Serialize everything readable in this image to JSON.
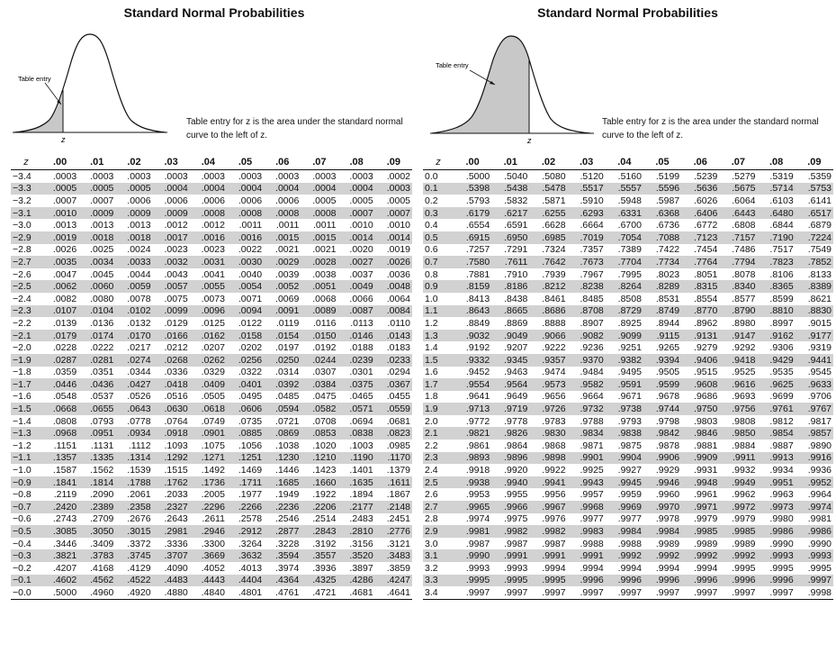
{
  "left": {
    "title": "Standard Normal Probabilities",
    "annotation": "Table entry",
    "zlabel": "z",
    "description": "Table entry for z is the area under the standard normal curve to the left of z.",
    "headers": [
      "z",
      ".00",
      ".01",
      ".02",
      ".03",
      ".04",
      ".05",
      ".06",
      ".07",
      ".08",
      ".09"
    ],
    "rows": [
      [
        "−3.4",
        ".0003",
        ".0003",
        ".0003",
        ".0003",
        ".0003",
        ".0003",
        ".0003",
        ".0003",
        ".0003",
        ".0002"
      ],
      [
        "−3.3",
        ".0005",
        ".0005",
        ".0005",
        ".0004",
        ".0004",
        ".0004",
        ".0004",
        ".0004",
        ".0004",
        ".0003"
      ],
      [
        "−3.2",
        ".0007",
        ".0007",
        ".0006",
        ".0006",
        ".0006",
        ".0006",
        ".0006",
        ".0005",
        ".0005",
        ".0005"
      ],
      [
        "−3.1",
        ".0010",
        ".0009",
        ".0009",
        ".0009",
        ".0008",
        ".0008",
        ".0008",
        ".0008",
        ".0007",
        ".0007"
      ],
      [
        "−3.0",
        ".0013",
        ".0013",
        ".0013",
        ".0012",
        ".0012",
        ".0011",
        ".0011",
        ".0011",
        ".0010",
        ".0010"
      ],
      [
        "−2.9",
        ".0019",
        ".0018",
        ".0018",
        ".0017",
        ".0016",
        ".0016",
        ".0015",
        ".0015",
        ".0014",
        ".0014"
      ],
      [
        "−2.8",
        ".0026",
        ".0025",
        ".0024",
        ".0023",
        ".0023",
        ".0022",
        ".0021",
        ".0021",
        ".0020",
        ".0019"
      ],
      [
        "−2.7",
        ".0035",
        ".0034",
        ".0033",
        ".0032",
        ".0031",
        ".0030",
        ".0029",
        ".0028",
        ".0027",
        ".0026"
      ],
      [
        "−2.6",
        ".0047",
        ".0045",
        ".0044",
        ".0043",
        ".0041",
        ".0040",
        ".0039",
        ".0038",
        ".0037",
        ".0036"
      ],
      [
        "−2.5",
        ".0062",
        ".0060",
        ".0059",
        ".0057",
        ".0055",
        ".0054",
        ".0052",
        ".0051",
        ".0049",
        ".0048"
      ],
      [
        "−2.4",
        ".0082",
        ".0080",
        ".0078",
        ".0075",
        ".0073",
        ".0071",
        ".0069",
        ".0068",
        ".0066",
        ".0064"
      ],
      [
        "−2.3",
        ".0107",
        ".0104",
        ".0102",
        ".0099",
        ".0096",
        ".0094",
        ".0091",
        ".0089",
        ".0087",
        ".0084"
      ],
      [
        "−2.2",
        ".0139",
        ".0136",
        ".0132",
        ".0129",
        ".0125",
        ".0122",
        ".0119",
        ".0116",
        ".0113",
        ".0110"
      ],
      [
        "−2.1",
        ".0179",
        ".0174",
        ".0170",
        ".0166",
        ".0162",
        ".0158",
        ".0154",
        ".0150",
        ".0146",
        ".0143"
      ],
      [
        "−2.0",
        ".0228",
        ".0222",
        ".0217",
        ".0212",
        ".0207",
        ".0202",
        ".0197",
        ".0192",
        ".0188",
        ".0183"
      ],
      [
        "−1.9",
        ".0287",
        ".0281",
        ".0274",
        ".0268",
        ".0262",
        ".0256",
        ".0250",
        ".0244",
        ".0239",
        ".0233"
      ],
      [
        "−1.8",
        ".0359",
        ".0351",
        ".0344",
        ".0336",
        ".0329",
        ".0322",
        ".0314",
        ".0307",
        ".0301",
        ".0294"
      ],
      [
        "−1.7",
        ".0446",
        ".0436",
        ".0427",
        ".0418",
        ".0409",
        ".0401",
        ".0392",
        ".0384",
        ".0375",
        ".0367"
      ],
      [
        "−1.6",
        ".0548",
        ".0537",
        ".0526",
        ".0516",
        ".0505",
        ".0495",
        ".0485",
        ".0475",
        ".0465",
        ".0455"
      ],
      [
        "−1.5",
        ".0668",
        ".0655",
        ".0643",
        ".0630",
        ".0618",
        ".0606",
        ".0594",
        ".0582",
        ".0571",
        ".0559"
      ],
      [
        "−1.4",
        ".0808",
        ".0793",
        ".0778",
        ".0764",
        ".0749",
        ".0735",
        ".0721",
        ".0708",
        ".0694",
        ".0681"
      ],
      [
        "−1.3",
        ".0968",
        ".0951",
        ".0934",
        ".0918",
        ".0901",
        ".0885",
        ".0869",
        ".0853",
        ".0838",
        ".0823"
      ],
      [
        "−1.2",
        ".1151",
        ".1131",
        ".1112",
        ".1093",
        ".1075",
        ".1056",
        ".1038",
        ".1020",
        ".1003",
        ".0985"
      ],
      [
        "−1.1",
        ".1357",
        ".1335",
        ".1314",
        ".1292",
        ".1271",
        ".1251",
        ".1230",
        ".1210",
        ".1190",
        ".1170"
      ],
      [
        "−1.0",
        ".1587",
        ".1562",
        ".1539",
        ".1515",
        ".1492",
        ".1469",
        ".1446",
        ".1423",
        ".1401",
        ".1379"
      ],
      [
        "−0.9",
        ".1841",
        ".1814",
        ".1788",
        ".1762",
        ".1736",
        ".1711",
        ".1685",
        ".1660",
        ".1635",
        ".1611"
      ],
      [
        "−0.8",
        ".2119",
        ".2090",
        ".2061",
        ".2033",
        ".2005",
        ".1977",
        ".1949",
        ".1922",
        ".1894",
        ".1867"
      ],
      [
        "−0.7",
        ".2420",
        ".2389",
        ".2358",
        ".2327",
        ".2296",
        ".2266",
        ".2236",
        ".2206",
        ".2177",
        ".2148"
      ],
      [
        "−0.6",
        ".2743",
        ".2709",
        ".2676",
        ".2643",
        ".2611",
        ".2578",
        ".2546",
        ".2514",
        ".2483",
        ".2451"
      ],
      [
        "−0.5",
        ".3085",
        ".3050",
        ".3015",
        ".2981",
        ".2946",
        ".2912",
        ".2877",
        ".2843",
        ".2810",
        ".2776"
      ],
      [
        "−0.4",
        ".3446",
        ".3409",
        ".3372",
        ".3336",
        ".3300",
        ".3264",
        ".3228",
        ".3192",
        ".3156",
        ".3121"
      ],
      [
        "−0.3",
        ".3821",
        ".3783",
        ".3745",
        ".3707",
        ".3669",
        ".3632",
        ".3594",
        ".3557",
        ".3520",
        ".3483"
      ],
      [
        "−0.2",
        ".4207",
        ".4168",
        ".4129",
        ".4090",
        ".4052",
        ".4013",
        ".3974",
        ".3936",
        ".3897",
        ".3859"
      ],
      [
        "−0.1",
        ".4602",
        ".4562",
        ".4522",
        ".4483",
        ".4443",
        ".4404",
        ".4364",
        ".4325",
        ".4286",
        ".4247"
      ],
      [
        "−0.0",
        ".5000",
        ".4960",
        ".4920",
        ".4880",
        ".4840",
        ".4801",
        ".4761",
        ".4721",
        ".4681",
        ".4641"
      ]
    ]
  },
  "right": {
    "title": "Standard Normal Probabilities",
    "annotation": "Table entry",
    "zlabel": "z",
    "description": "Table entry for z is the area under the standard normal curve to the left of z.",
    "headers": [
      "z",
      ".00",
      ".01",
      ".02",
      ".03",
      ".04",
      ".05",
      ".06",
      ".07",
      ".08",
      ".09"
    ],
    "rows": [
      [
        "0.0",
        ".5000",
        ".5040",
        ".5080",
        ".5120",
        ".5160",
        ".5199",
        ".5239",
        ".5279",
        ".5319",
        ".5359"
      ],
      [
        "0.1",
        ".5398",
        ".5438",
        ".5478",
        ".5517",
        ".5557",
        ".5596",
        ".5636",
        ".5675",
        ".5714",
        ".5753"
      ],
      [
        "0.2",
        ".5793",
        ".5832",
        ".5871",
        ".5910",
        ".5948",
        ".5987",
        ".6026",
        ".6064",
        ".6103",
        ".6141"
      ],
      [
        "0.3",
        ".6179",
        ".6217",
        ".6255",
        ".6293",
        ".6331",
        ".6368",
        ".6406",
        ".6443",
        ".6480",
        ".6517"
      ],
      [
        "0.4",
        ".6554",
        ".6591",
        ".6628",
        ".6664",
        ".6700",
        ".6736",
        ".6772",
        ".6808",
        ".6844",
        ".6879"
      ],
      [
        "0.5",
        ".6915",
        ".6950",
        ".6985",
        ".7019",
        ".7054",
        ".7088",
        ".7123",
        ".7157",
        ".7190",
        ".7224"
      ],
      [
        "0.6",
        ".7257",
        ".7291",
        ".7324",
        ".7357",
        ".7389",
        ".7422",
        ".7454",
        ".7486",
        ".7517",
        ".7549"
      ],
      [
        "0.7",
        ".7580",
        ".7611",
        ".7642",
        ".7673",
        ".7704",
        ".7734",
        ".7764",
        ".7794",
        ".7823",
        ".7852"
      ],
      [
        "0.8",
        ".7881",
        ".7910",
        ".7939",
        ".7967",
        ".7995",
        ".8023",
        ".8051",
        ".8078",
        ".8106",
        ".8133"
      ],
      [
        "0.9",
        ".8159",
        ".8186",
        ".8212",
        ".8238",
        ".8264",
        ".8289",
        ".8315",
        ".8340",
        ".8365",
        ".8389"
      ],
      [
        "1.0",
        ".8413",
        ".8438",
        ".8461",
        ".8485",
        ".8508",
        ".8531",
        ".8554",
        ".8577",
        ".8599",
        ".8621"
      ],
      [
        "1.1",
        ".8643",
        ".8665",
        ".8686",
        ".8708",
        ".8729",
        ".8749",
        ".8770",
        ".8790",
        ".8810",
        ".8830"
      ],
      [
        "1.2",
        ".8849",
        ".8869",
        ".8888",
        ".8907",
        ".8925",
        ".8944",
        ".8962",
        ".8980",
        ".8997",
        ".9015"
      ],
      [
        "1.3",
        ".9032",
        ".9049",
        ".9066",
        ".9082",
        ".9099",
        ".9115",
        ".9131",
        ".9147",
        ".9162",
        ".9177"
      ],
      [
        "1.4",
        ".9192",
        ".9207",
        ".9222",
        ".9236",
        ".9251",
        ".9265",
        ".9279",
        ".9292",
        ".9306",
        ".9319"
      ],
      [
        "1.5",
        ".9332",
        ".9345",
        ".9357",
        ".9370",
        ".9382",
        ".9394",
        ".9406",
        ".9418",
        ".9429",
        ".9441"
      ],
      [
        "1.6",
        ".9452",
        ".9463",
        ".9474",
        ".9484",
        ".9495",
        ".9505",
        ".9515",
        ".9525",
        ".9535",
        ".9545"
      ],
      [
        "1.7",
        ".9554",
        ".9564",
        ".9573",
        ".9582",
        ".9591",
        ".9599",
        ".9608",
        ".9616",
        ".9625",
        ".9633"
      ],
      [
        "1.8",
        ".9641",
        ".9649",
        ".9656",
        ".9664",
        ".9671",
        ".9678",
        ".9686",
        ".9693",
        ".9699",
        ".9706"
      ],
      [
        "1.9",
        ".9713",
        ".9719",
        ".9726",
        ".9732",
        ".9738",
        ".9744",
        ".9750",
        ".9756",
        ".9761",
        ".9767"
      ],
      [
        "2.0",
        ".9772",
        ".9778",
        ".9783",
        ".9788",
        ".9793",
        ".9798",
        ".9803",
        ".9808",
        ".9812",
        ".9817"
      ],
      [
        "2.1",
        ".9821",
        ".9826",
        ".9830",
        ".9834",
        ".9838",
        ".9842",
        ".9846",
        ".9850",
        ".9854",
        ".9857"
      ],
      [
        "2.2",
        ".9861",
        ".9864",
        ".9868",
        ".9871",
        ".9875",
        ".9878",
        ".9881",
        ".9884",
        ".9887",
        ".9890"
      ],
      [
        "2.3",
        ".9893",
        ".9896",
        ".9898",
        ".9901",
        ".9904",
        ".9906",
        ".9909",
        ".9911",
        ".9913",
        ".9916"
      ],
      [
        "2.4",
        ".9918",
        ".9920",
        ".9922",
        ".9925",
        ".9927",
        ".9929",
        ".9931",
        ".9932",
        ".9934",
        ".9936"
      ],
      [
        "2.5",
        ".9938",
        ".9940",
        ".9941",
        ".9943",
        ".9945",
        ".9946",
        ".9948",
        ".9949",
        ".9951",
        ".9952"
      ],
      [
        "2.6",
        ".9953",
        ".9955",
        ".9956",
        ".9957",
        ".9959",
        ".9960",
        ".9961",
        ".9962",
        ".9963",
        ".9964"
      ],
      [
        "2.7",
        ".9965",
        ".9966",
        ".9967",
        ".9968",
        ".9969",
        ".9970",
        ".9971",
        ".9972",
        ".9973",
        ".9974"
      ],
      [
        "2.8",
        ".9974",
        ".9975",
        ".9976",
        ".9977",
        ".9977",
        ".9978",
        ".9979",
        ".9979",
        ".9980",
        ".9981"
      ],
      [
        "2.9",
        ".9981",
        ".9982",
        ".9982",
        ".9983",
        ".9984",
        ".9984",
        ".9985",
        ".9985",
        ".9986",
        ".9986"
      ],
      [
        "3.0",
        ".9987",
        ".9987",
        ".9987",
        ".9988",
        ".9988",
        ".9989",
        ".9989",
        ".9989",
        ".9990",
        ".9990"
      ],
      [
        "3.1",
        ".9990",
        ".9991",
        ".9991",
        ".9991",
        ".9992",
        ".9992",
        ".9992",
        ".9992",
        ".9993",
        ".9993"
      ],
      [
        "3.2",
        ".9993",
        ".9993",
        ".9994",
        ".9994",
        ".9994",
        ".9994",
        ".9994",
        ".9995",
        ".9995",
        ".9995"
      ],
      [
        "3.3",
        ".9995",
        ".9995",
        ".9995",
        ".9996",
        ".9996",
        ".9996",
        ".9996",
        ".9996",
        ".9996",
        ".9997"
      ],
      [
        "3.4",
        ".9997",
        ".9997",
        ".9997",
        ".9997",
        ".9997",
        ".9997",
        ".9997",
        ".9997",
        ".9997",
        ".9998"
      ]
    ]
  }
}
